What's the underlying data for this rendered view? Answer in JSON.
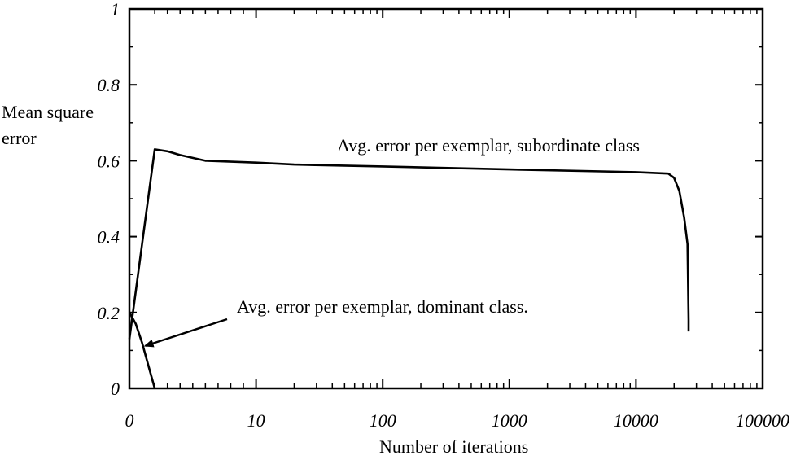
{
  "chart_data": {
    "type": "line",
    "title": "",
    "xlabel": "Number of iterations",
    "ylabel": "Mean square error",
    "ylim": [
      0,
      1
    ],
    "yticks": [
      0,
      0.2,
      0.4,
      0.6,
      0.8,
      1
    ],
    "ytick_labels": [
      "0",
      "0.2",
      "0.4",
      "0.6",
      "0.8",
      "1"
    ],
    "xticks": [
      0,
      10,
      100,
      1000,
      10000,
      100000
    ],
    "xtick_labels": [
      "0",
      "10",
      "100",
      "1000",
      "10000",
      "100000"
    ],
    "x_scale": "log",
    "grid": false,
    "legend": "none",
    "series": [
      {
        "label": "Avg. error per exemplar, subordinate class",
        "color": "#000000",
        "points": [
          [
            0,
            0.13
          ],
          [
            2,
            0.63
          ],
          [
            3,
            0.625
          ],
          [
            4,
            0.615
          ],
          [
            6,
            0.6
          ],
          [
            10,
            0.595
          ],
          [
            20,
            0.59
          ],
          [
            100,
            0.585
          ],
          [
            1000,
            0.577
          ],
          [
            10000,
            0.57
          ],
          [
            18000,
            0.566
          ],
          [
            20000,
            0.555
          ],
          [
            22000,
            0.52
          ],
          [
            24000,
            0.45
          ],
          [
            25500,
            0.38
          ],
          [
            26000,
            0.18
          ],
          [
            26000,
            0.15
          ]
        ]
      },
      {
        "label": "Avg. error per exemplar, dominant class.",
        "color": "#000000",
        "points": [
          [
            0,
            0.2
          ],
          [
            0.5,
            0.17
          ],
          [
            1,
            0.12
          ],
          [
            1.5,
            0.06
          ],
          [
            2,
            0.0
          ]
        ]
      }
    ],
    "annotations": [
      {
        "text": "Avg. error per exemplar, subordinate class",
        "x": 40000,
        "y": 0.64
      },
      {
        "text": "Avg. error per exemplar, dominant class.",
        "x": 40,
        "y": 0.215,
        "arrow_to": [
          1,
          0.11
        ]
      }
    ]
  },
  "labels": {
    "ylabel_line1": "Mean square",
    "ylabel_line2": "error",
    "xlabel": "Number of iterations"
  }
}
